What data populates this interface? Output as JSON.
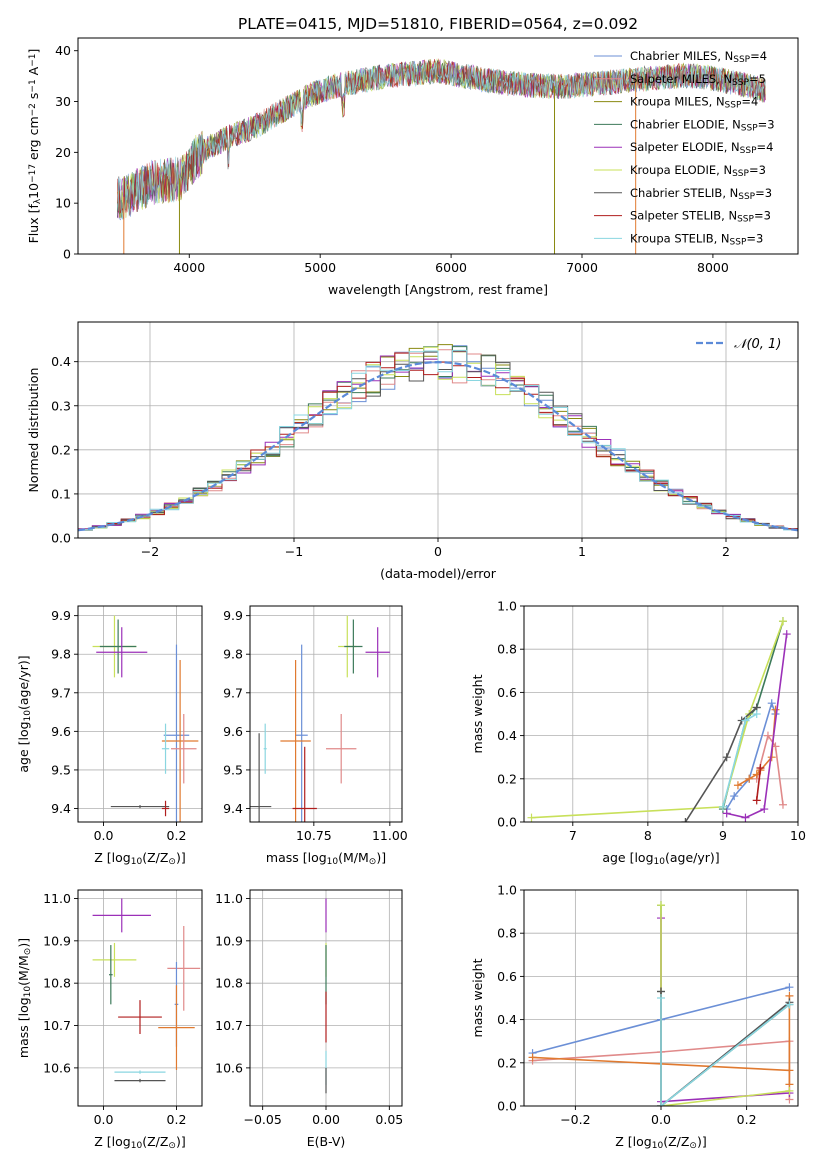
{
  "figure_title": "PLATE=0415, MJD=51810, FIBERID=0564, z=0.092",
  "legend_entries": [
    {
      "label": "Chabrier MILES, N",
      "sub": "SSP",
      "suffix": "=4",
      "color": "#6b8fd6"
    },
    {
      "label": "Salpeter MILES, N",
      "sub": "SSP",
      "suffix": "=5",
      "color": "#e08a8a"
    },
    {
      "label": "Kroupa MILES, N",
      "sub": "SSP",
      "suffix": "=4",
      "color": "#8a8a10"
    },
    {
      "label": "Chabrier ELODIE, N",
      "sub": "SSP",
      "suffix": "=3",
      "color": "#3d7a5a"
    },
    {
      "label": "Salpeter ELODIE, N",
      "sub": "SSP",
      "suffix": "=4",
      "color": "#9b30b8"
    },
    {
      "label": "Kroupa ELODIE, N",
      "sub": "SSP",
      "suffix": "=3",
      "color": "#c8e05a"
    },
    {
      "label": "Chabrier STELIB, N",
      "sub": "SSP",
      "suffix": "=3",
      "color": "#555555"
    },
    {
      "label": "Salpeter STELIB, N",
      "sub": "SSP",
      "suffix": "=3",
      "color": "#b01e1e"
    },
    {
      "label": "Kroupa STELIB, N",
      "sub": "SSP",
      "suffix": "=3",
      "color": "#8ad6e0"
    }
  ],
  "chart_data": [
    {
      "id": "spectrum",
      "type": "line",
      "xlabel": "wavelength [Angstrom, rest frame]",
      "ylabel_main": "Flux [f",
      "ylabel_sub": "λ",
      "ylabel_rest": "10",
      "ylabel_sup1": "−17",
      "ylabel_mid": " erg cm",
      "ylabel_sup2": "−2",
      "ylabel_mid2": " s",
      "ylabel_sup3": "−1",
      "ylabel_end": " A",
      "ylabel_sup4": "−1",
      "ylabel_close": "]",
      "xlim": [
        3150,
        8650
      ],
      "ylim": [
        0,
        42.5
      ],
      "xticks": [
        "4000",
        "5000",
        "6000",
        "7000",
        "8000"
      ],
      "xtick_values": [
        4000,
        5000,
        6000,
        7000,
        8000
      ],
      "yticks": [
        "0",
        "10",
        "20",
        "30",
        "40"
      ],
      "ytick_values": [
        0,
        10,
        20,
        30,
        40
      ],
      "continuum": {
        "x": [
          3450,
          3550,
          3700,
          3850,
          3950,
          4050,
          4150,
          4300,
          4500,
          4700,
          4900,
          5100,
          5300,
          5500,
          5700,
          5900,
          6100,
          6300,
          6500,
          6700,
          6900,
          7100,
          7300,
          7500,
          7700,
          7900,
          8100,
          8300,
          8400
        ],
        "y": [
          11,
          11.5,
          14,
          14.5,
          15,
          19,
          21,
          23,
          25,
          28,
          31,
          33,
          34,
          35,
          35.5,
          36,
          35,
          34,
          33.5,
          33,
          33,
          33.5,
          34,
          34.5,
          35,
          35,
          34,
          33,
          32
        ]
      },
      "dips": [
        {
          "x": 3500,
          "y": 0,
          "color": "#e07a30"
        },
        {
          "x": 3925,
          "y": 0,
          "color": "#8a8a10"
        },
        {
          "x": 6790,
          "y": 0,
          "color": "#8a8a10"
        },
        {
          "x": 7410,
          "y": 0,
          "color": "#e07a30"
        }
      ]
    },
    {
      "id": "residuals",
      "type": "histogram",
      "xlabel": "(data-model)/error",
      "ylabel": "Normed distribution",
      "xlim": [
        -2.5,
        2.5
      ],
      "ylim": [
        0,
        0.49
      ],
      "xticks": [
        "−2",
        "−1",
        "0",
        "1",
        "2"
      ],
      "xtick_values": [
        -2,
        -1,
        0,
        1,
        2
      ],
      "yticks": [
        "0.0",
        "0.1",
        "0.2",
        "0.3",
        "0.4"
      ],
      "ytick_values": [
        0,
        0.1,
        0.2,
        0.3,
        0.4
      ],
      "legend_label": "𝒩(0, 1)",
      "bin_width": 0.1,
      "hist_colors": [
        "#6b8fd6",
        "#e08a8a",
        "#8a8a10",
        "#3d7a5a",
        "#9b30b8",
        "#c8e05a",
        "#555555",
        "#b01e1e",
        "#8ad6e0"
      ]
    },
    {
      "id": "age_Z",
      "type": "errorbar",
      "xlabel": "Z [log",
      "xlabel_sub": "10",
      "xlabel_rest": "(Z/Z",
      "xlabel_sub2": "⊙",
      "xlabel_end": ")]",
      "ylabel": "age  [log",
      "ylabel_sub": "10",
      "ylabel_rest": "(age/yr)]",
      "xlim": [
        -0.07,
        0.27
      ],
      "ylim": [
        9.365,
        9.925
      ],
      "xticks": [
        "0.0",
        "0.2"
      ],
      "xtick_values": [
        0,
        0.2
      ],
      "yticks": [
        "9.4",
        "9.5",
        "9.6",
        "9.7",
        "9.8",
        "9.9"
      ],
      "ytick_values": [
        9.4,
        9.5,
        9.6,
        9.7,
        9.8,
        9.9
      ],
      "points": [
        {
          "x": 0.03,
          "y": 9.82,
          "xerr": 0.06,
          "yerr": 0.08,
          "color": "#c8e05a"
        },
        {
          "x": 0.04,
          "y": 9.82,
          "xerr": 0.05,
          "yerr": 0.07,
          "color": "#3d7a5a"
        },
        {
          "x": 0.05,
          "y": 9.805,
          "xerr": 0.07,
          "yerr": 0.065,
          "color": "#9b30b8"
        },
        {
          "x": 0.2,
          "y": 9.59,
          "xerr": 0.035,
          "yerr": 0.235,
          "color": "#6b8fd6"
        },
        {
          "x": 0.21,
          "y": 9.575,
          "xerr": 0.05,
          "yerr": 0.21,
          "color": "#e07a30"
        },
        {
          "x": 0.22,
          "y": 9.555,
          "xerr": 0.035,
          "yerr": 0.09,
          "color": "#e08a8a"
        },
        {
          "x": 0.17,
          "y": 9.555,
          "xerr": 0.01,
          "yerr": 0.065,
          "color": "#8ad6e0"
        },
        {
          "x": 0.1,
          "y": 9.405,
          "xerr": 0.08,
          "yerr": 0.004,
          "color": "#555555"
        },
        {
          "x": 0.17,
          "y": 9.4,
          "xerr": 0.01,
          "yerr": 0.02,
          "color": "#b01e1e"
        }
      ]
    },
    {
      "id": "age_mass",
      "type": "errorbar",
      "xlabel": "mass [log",
      "xlabel_sub": "10",
      "xlabel_rest": "(M/M",
      "xlabel_sub2": "⊙",
      "xlabel_end": ")]",
      "xlim": [
        10.54,
        11.04
      ],
      "ylim": [
        9.365,
        9.925
      ],
      "xticks": [
        "10.75",
        "11.00"
      ],
      "xtick_values": [
        10.75,
        11.0
      ],
      "yticks": [
        "9.4",
        "9.5",
        "9.6",
        "9.7",
        "9.8",
        "9.9"
      ],
      "ytick_values": [
        9.4,
        9.5,
        9.6,
        9.7,
        9.8,
        9.9
      ],
      "points": [
        {
          "x": 10.86,
          "y": 9.82,
          "xerr": 0.03,
          "yerr": 0.08,
          "color": "#c8e05a"
        },
        {
          "x": 10.88,
          "y": 9.82,
          "xerr": 0.03,
          "yerr": 0.07,
          "color": "#3d7a5a"
        },
        {
          "x": 10.96,
          "y": 9.805,
          "xerr": 0.04,
          "yerr": 0.065,
          "color": "#9b30b8"
        },
        {
          "x": 10.71,
          "y": 9.59,
          "xerr": 0.02,
          "yerr": 0.235,
          "color": "#6b8fd6"
        },
        {
          "x": 10.69,
          "y": 9.575,
          "xerr": 0.05,
          "yerr": 0.21,
          "color": "#e07a30"
        },
        {
          "x": 10.84,
          "y": 9.555,
          "xerr": 0.05,
          "yerr": 0.09,
          "color": "#e08a8a"
        },
        {
          "x": 10.59,
          "y": 9.555,
          "xerr": 0.005,
          "yerr": 0.065,
          "color": "#8ad6e0"
        },
        {
          "x": 10.57,
          "y": 9.405,
          "xerr": 0.04,
          "yerr": 0.19,
          "color": "#555555"
        },
        {
          "x": 10.72,
          "y": 9.4,
          "xerr": 0.04,
          "yerr": 0.16,
          "color": "#b01e1e"
        }
      ]
    },
    {
      "id": "weight_age",
      "type": "line",
      "xlabel": "age  [log",
      "xlabel_sub": "10",
      "xlabel_rest": "(age/yr)]",
      "ylabel": "mass weight",
      "xlim": [
        6.35,
        10.0
      ],
      "ylim": [
        0,
        1.0
      ],
      "xticks": [
        "7",
        "8",
        "9",
        "10"
      ],
      "xtick_values": [
        7,
        8,
        9,
        10
      ],
      "yticks": [
        "0.0",
        "0.2",
        "0.4",
        "0.6",
        "0.8",
        "1.0"
      ],
      "ytick_values": [
        0,
        0.2,
        0.4,
        0.6,
        0.8,
        1.0
      ],
      "series": [
        {
          "color": "#6b8fd6",
          "points": [
            [
              9.05,
              0.06
            ],
            [
              9.15,
              0.12
            ],
            [
              9.35,
              0.2
            ],
            [
              9.65,
              0.55
            ],
            [
              9.7,
              0.5
            ]
          ]
        },
        {
          "color": "#e08a8a",
          "points": [
            [
              9.45,
              0.2
            ],
            [
              9.6,
              0.4
            ],
            [
              9.7,
              0.35
            ],
            [
              9.8,
              0.08
            ]
          ]
        },
        {
          "color": "#e07a30",
          "points": [
            [
              9.2,
              0.17
            ],
            [
              9.35,
              0.2
            ],
            [
              9.45,
              0.22
            ],
            [
              9.5,
              0.24
            ],
            [
              9.65,
              0.3
            ],
            [
              9.7,
              0.52
            ]
          ]
        },
        {
          "color": "#3d7a5a",
          "points": [
            [
              9.0,
              0.06
            ],
            [
              9.3,
              0.47
            ],
            [
              9.45,
              0.53
            ],
            [
              9.8,
              0.93
            ]
          ]
        },
        {
          "color": "#9b30b8",
          "points": [
            [
              9.05,
              0.04
            ],
            [
              9.3,
              0.02
            ],
            [
              9.55,
              0.06
            ],
            [
              9.85,
              0.87
            ]
          ]
        },
        {
          "color": "#c8e05a",
          "points": [
            [
              6.45,
              0.02
            ],
            [
              9.0,
              0.07
            ],
            [
              9.35,
              0.5
            ],
            [
              9.8,
              0.93
            ]
          ]
        },
        {
          "color": "#555555",
          "points": [
            [
              8.5,
              0.0
            ],
            [
              9.05,
              0.3
            ],
            [
              9.25,
              0.47
            ],
            [
              9.45,
              0.53
            ]
          ]
        },
        {
          "color": "#b01e1e",
          "points": [
            [
              9.45,
              0.1
            ],
            [
              9.5,
              0.25
            ]
          ]
        },
        {
          "color": "#8ad6e0",
          "points": [
            [
              9.0,
              0.07
            ],
            [
              9.3,
              0.47
            ],
            [
              9.45,
              0.5
            ]
          ]
        }
      ]
    },
    {
      "id": "mass_Z",
      "type": "errorbar",
      "xlabel": "Z [log",
      "xlabel_sub": "10",
      "xlabel_rest": "(Z/Z",
      "xlabel_sub2": "⊙",
      "xlabel_end": ")]",
      "ylabel": "mass [log",
      "ylabel_sub": "10",
      "ylabel_rest": "(M/M",
      "ylabel_sub2": "⊙",
      "ylabel_end": ")]",
      "xlim": [
        -0.07,
        0.27
      ],
      "ylim": [
        10.51,
        11.02
      ],
      "xticks": [
        "0.0",
        "0.2"
      ],
      "xtick_values": [
        0,
        0.2
      ],
      "yticks": [
        "10.6",
        "10.7",
        "10.8",
        "10.9",
        "11.0"
      ],
      "ytick_values": [
        10.6,
        10.7,
        10.8,
        10.9,
        11.0
      ],
      "points": [
        {
          "x": 0.05,
          "y": 10.96,
          "xerr": 0.08,
          "yerr": 0.04,
          "color": "#9b30b8"
        },
        {
          "x": 0.03,
          "y": 10.855,
          "xerr": 0.06,
          "yerr": 0.04,
          "color": "#c8e05a"
        },
        {
          "x": 0.02,
          "y": 10.82,
          "xerr": 0.005,
          "yerr": 0.07,
          "color": "#3d7a5a"
        },
        {
          "x": 0.22,
          "y": 10.835,
          "xerr": 0.045,
          "yerr": 0.1,
          "color": "#e08a8a"
        },
        {
          "x": 0.2,
          "y": 10.75,
          "xerr": 0.005,
          "yerr": 0.1,
          "color": "#6b8fd6"
        },
        {
          "x": 0.2,
          "y": 10.695,
          "xerr": 0.05,
          "yerr": 0.1,
          "color": "#e07a30"
        },
        {
          "x": 0.1,
          "y": 10.72,
          "xerr": 0.06,
          "yerr": 0.04,
          "color": "#b01e1e"
        },
        {
          "x": 0.1,
          "y": 10.59,
          "xerr": 0.07,
          "yerr": 0.004,
          "color": "#8ad6e0"
        },
        {
          "x": 0.1,
          "y": 10.57,
          "xerr": 0.07,
          "yerr": 0.004,
          "color": "#555555"
        }
      ]
    },
    {
      "id": "mass_EBV",
      "type": "errorbar",
      "xlabel": "E(B-V)",
      "xlim": [
        -0.06,
        0.06
      ],
      "ylim": [
        10.51,
        11.02
      ],
      "xticks": [
        "−0.05",
        "0.00",
        "0.05"
      ],
      "xtick_values": [
        -0.05,
        0,
        0.05
      ],
      "yticks": [
        "10.6",
        "10.7",
        "10.8",
        "10.9",
        "11.0"
      ],
      "ytick_values": [
        10.6,
        10.7,
        10.8,
        10.9,
        11.0
      ],
      "points": [
        {
          "x": 0,
          "y": 10.96,
          "xerr": 0,
          "yerr": 0.04,
          "color": "#9b30b8"
        },
        {
          "x": 0,
          "y": 10.855,
          "xerr": 0,
          "yerr": 0.04,
          "color": "#c8e05a"
        },
        {
          "x": 0,
          "y": 10.82,
          "xerr": 0,
          "yerr": 0.07,
          "color": "#3d7a5a"
        },
        {
          "x": 0,
          "y": 10.72,
          "xerr": 0,
          "yerr": 0.06,
          "color": "#b01e1e"
        },
        {
          "x": 0,
          "y": 10.6,
          "xerr": 0,
          "yerr": 0.04,
          "color": "#8ad6e0"
        },
        {
          "x": 0,
          "y": 10.57,
          "xerr": 0,
          "yerr": 0.03,
          "color": "#555555"
        }
      ]
    },
    {
      "id": "weight_Z",
      "type": "line",
      "xlabel": "Z [log",
      "xlabel_sub": "10",
      "xlabel_rest": "(Z/Z",
      "xlabel_sub2": "⊙",
      "xlabel_end": ")]",
      "ylabel": "mass weight",
      "xlim": [
        -0.32,
        0.32
      ],
      "ylim": [
        0,
        1.0
      ],
      "xticks": [
        "−0.2",
        "0.0",
        "0.2"
      ],
      "xtick_values": [
        -0.2,
        0,
        0.2
      ],
      "yticks": [
        "0.0",
        "0.2",
        "0.4",
        "0.6",
        "0.8",
        "1.0"
      ],
      "ytick_values": [
        0,
        0.2,
        0.4,
        0.6,
        0.8,
        1.0
      ],
      "series": [
        {
          "color": "#6b8fd6",
          "points": [
            [
              -0.3,
              0.245
            ],
            [
              0.0,
              0.4
            ],
            [
              0.3,
              0.55
            ]
          ]
        },
        {
          "color": "#e08a8a",
          "points": [
            [
              -0.3,
              0.21
            ],
            [
              0.0,
              0.25
            ],
            [
              0.3,
              0.3
            ],
            [
              0.3,
              0.03
            ]
          ]
        },
        {
          "color": "#e07a30",
          "points": [
            [
              -0.3,
              0.225
            ],
            [
              0.3,
              0.165
            ],
            [
              0.3,
              0.51
            ],
            [
              0.3,
              0.1
            ]
          ]
        },
        {
          "color": "#3d7a5a",
          "points": [
            [
              0.0,
              0.93
            ],
            [
              0.0,
              0.53
            ],
            [
              0.0,
              0.0
            ],
            [
              0.3,
              0.47
            ]
          ]
        },
        {
          "color": "#9b30b8",
          "points": [
            [
              0.0,
              0.87
            ],
            [
              0.0,
              0.02
            ],
            [
              0.3,
              0.06
            ]
          ]
        },
        {
          "color": "#c8e05a",
          "points": [
            [
              0.0,
              0.93
            ],
            [
              0.0,
              0.0
            ],
            [
              0.3,
              0.07
            ]
          ]
        },
        {
          "color": "#555555",
          "points": [
            [
              0.0,
              0.53
            ],
            [
              0.0,
              0.0
            ],
            [
              0.3,
              0.48
            ]
          ]
        },
        {
          "color": "#8ad6e0",
          "points": [
            [
              0.0,
              0.5
            ],
            [
              0.0,
              0.0
            ],
            [
              0.3,
              0.47
            ]
          ]
        }
      ]
    }
  ]
}
